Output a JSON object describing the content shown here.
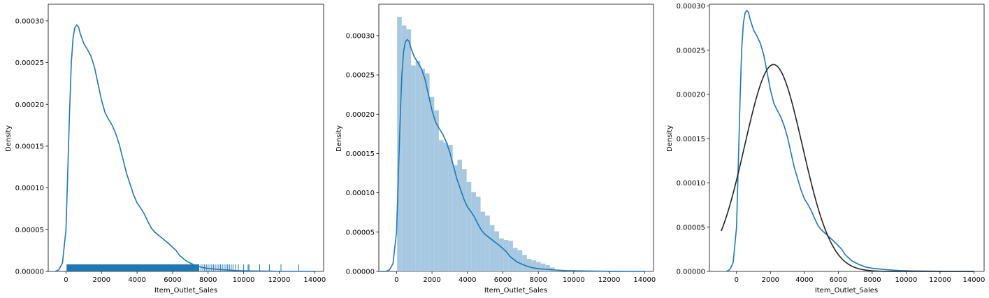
{
  "chart_data": [
    {
      "type": "line",
      "subtype": "kde_with_rug",
      "xlabel": "Item_Outlet_Sales",
      "ylabel": "Density",
      "xlim": [
        -1000,
        14500
      ],
      "ylim": [
        0,
        0.00032
      ],
      "xticks": [
        0,
        2000,
        4000,
        6000,
        8000,
        10000,
        12000,
        14000
      ],
      "yticks": [
        0.0,
        5e-05,
        0.0001,
        0.00015,
        0.0002,
        0.00025,
        0.0003
      ],
      "ytick_labels": [
        "0.00000",
        "0.00005",
        "0.00010",
        "0.00015",
        "0.00020",
        "0.00025",
        "0.00030"
      ],
      "colors": {
        "kde": "#1f77b4",
        "rug": "#1f77b4"
      },
      "series": [
        {
          "values": [
            [
              -600,
              0
            ],
            [
              -400,
              2e-06
            ],
            [
              -200,
              1e-05
            ],
            [
              0,
              5e-05
            ],
            [
              100,
              0.00012
            ],
            [
              200,
              0.00019
            ],
            [
              300,
              0.00025
            ],
            [
              400,
              0.00028
            ],
            [
              500,
              0.000292
            ],
            [
              600,
              0.000295
            ],
            [
              700,
              0.000293
            ],
            [
              800,
              0.000285
            ],
            [
              1000,
              0.000273
            ],
            [
              1200,
              0.000266
            ],
            [
              1400,
              0.000258
            ],
            [
              1600,
              0.000245
            ],
            [
              1800,
              0.000225
            ],
            [
              2000,
              0.000205
            ],
            [
              2200,
              0.00019
            ],
            [
              2400,
              0.000182
            ],
            [
              2600,
              0.000175
            ],
            [
              2800,
              0.000165
            ],
            [
              3000,
              0.000152
            ],
            [
              3200,
              0.000135
            ],
            [
              3400,
              0.000118
            ],
            [
              3600,
              0.000105
            ],
            [
              3800,
              9.2e-05
            ],
            [
              4000,
              8.2e-05
            ],
            [
              4200,
              7.6e-05
            ],
            [
              4400,
              6.9e-05
            ],
            [
              4600,
              6e-05
            ],
            [
              4800,
              5.2e-05
            ],
            [
              5000,
              4.7e-05
            ],
            [
              5400,
              4e-05
            ],
            [
              5800,
              3.3e-05
            ],
            [
              6200,
              2.5e-05
            ],
            [
              6400,
              1.9e-05
            ],
            [
              6800,
              1.2e-05
            ],
            [
              7200,
              8e-06
            ],
            [
              7600,
              5e-06
            ],
            [
              8000,
              3.5e-06
            ],
            [
              8800,
              2e-06
            ],
            [
              9600,
              1e-06
            ],
            [
              10400,
              6e-07
            ],
            [
              12000,
              2e-07
            ],
            [
              14000,
              0
            ]
          ]
        }
      ],
      "rug": {
        "height": 8.5e-06,
        "dense_range": [
          33,
          7500
        ],
        "sparse_points": [
          7600,
          7700,
          7800,
          7900,
          8000,
          8100,
          8200,
          8300,
          8400,
          8500,
          8600,
          8700,
          8800,
          8900,
          9000,
          9100,
          9200,
          9300,
          9400,
          9550,
          9700,
          10000,
          10250,
          10300,
          10900,
          11450,
          12100,
          13100
        ]
      }
    },
    {
      "type": "bar",
      "subtype": "histogram_with_kde",
      "xlabel": "Item_Outlet_Sales",
      "ylabel": "Density",
      "xlim": [
        -1000,
        14500
      ],
      "ylim": [
        0,
        0.00034
      ],
      "xticks": [
        0,
        2000,
        4000,
        6000,
        8000,
        10000,
        12000,
        14000
      ],
      "yticks": [
        0.0,
        5e-05,
        0.0001,
        0.00015,
        0.0002,
        0.00025,
        0.0003
      ],
      "ytick_labels": [
        "0.00000",
        "0.00005",
        "0.00010",
        "0.00015",
        "0.00020",
        "0.00025",
        "0.00030"
      ],
      "colors": {
        "bars": "#a6c8e1",
        "kde": "#1f77b4"
      },
      "bins": {
        "start": 33,
        "width": 261.5
      },
      "values": [
        0.000324,
        0.000313,
        0.000308,
        0.000262,
        0.000268,
        0.000258,
        0.000252,
        0.000222,
        0.000205,
        0.000167,
        0.000164,
        0.000161,
        0.000135,
        0.000142,
        0.00013,
        0.000114,
        0.000101,
        9.5e-05,
        7.6e-05,
        7.1e-05,
        5.9e-05,
        5.1e-05,
        4.2e-05,
        4e-05,
        3.9e-05,
        3e-05,
        2.7e-05,
        2.1e-05,
        1.6e-05,
        1.4e-05,
        1.2e-05,
        1e-05,
        8e-06,
        5e-06
      ],
      "series": [
        {
          "values": [
            [
              -900,
              0
            ],
            [
              -600,
              0
            ],
            [
              -400,
              2e-06
            ],
            [
              -200,
              1e-05
            ],
            [
              0,
              5e-05
            ],
            [
              100,
              0.00012
            ],
            [
              200,
              0.00019
            ],
            [
              300,
              0.00025
            ],
            [
              400,
              0.00028
            ],
            [
              500,
              0.000292
            ],
            [
              600,
              0.000295
            ],
            [
              700,
              0.000293
            ],
            [
              800,
              0.000285
            ],
            [
              1000,
              0.000273
            ],
            [
              1200,
              0.000266
            ],
            [
              1400,
              0.000258
            ],
            [
              1600,
              0.000245
            ],
            [
              1800,
              0.000225
            ],
            [
              2000,
              0.000205
            ],
            [
              2200,
              0.00019
            ],
            [
              2400,
              0.000182
            ],
            [
              2600,
              0.000175
            ],
            [
              2800,
              0.000165
            ],
            [
              3000,
              0.000152
            ],
            [
              3200,
              0.000135
            ],
            [
              3400,
              0.000118
            ],
            [
              3600,
              0.000105
            ],
            [
              3800,
              9.2e-05
            ],
            [
              4000,
              8.2e-05
            ],
            [
              4200,
              7.6e-05
            ],
            [
              4400,
              6.9e-05
            ],
            [
              4600,
              6e-05
            ],
            [
              4800,
              5.2e-05
            ],
            [
              5000,
              4.7e-05
            ],
            [
              5400,
              4e-05
            ],
            [
              5800,
              3.3e-05
            ],
            [
              6200,
              2.5e-05
            ],
            [
              6400,
              1.9e-05
            ],
            [
              6800,
              1.2e-05
            ],
            [
              7200,
              8e-06
            ],
            [
              7600,
              5e-06
            ],
            [
              8000,
              3.5e-06
            ],
            [
              8800,
              2e-06
            ],
            [
              9600,
              1e-06
            ],
            [
              10400,
              6e-07
            ],
            [
              12000,
              2e-07
            ],
            [
              14000,
              0
            ]
          ]
        }
      ]
    },
    {
      "type": "line",
      "subtype": "kde_with_normal_fit",
      "xlabel": "Item_Outlet_Sales",
      "ylabel": "Density",
      "xlim": [
        -1600,
        14600
      ],
      "ylim": [
        0,
        0.000302
      ],
      "xticks": [
        0,
        2000,
        4000,
        6000,
        8000,
        10000,
        12000,
        14000
      ],
      "yticks": [
        0.0,
        5e-05,
        0.0001,
        0.00015,
        0.0002,
        0.00025,
        0.0003
      ],
      "ytick_labels": [
        "0.00000",
        "0.00005",
        "0.00010",
        "0.00015",
        "0.00020",
        "0.00025",
        "0.00030"
      ],
      "colors": {
        "kde": "#1f77b4",
        "fit": "#222222"
      },
      "series": [
        {
          "values": [
            [
              -600,
              0
            ],
            [
              -400,
              2e-06
            ],
            [
              -200,
              1e-05
            ],
            [
              0,
              5e-05
            ],
            [
              100,
              0.00012
            ],
            [
              200,
              0.00019
            ],
            [
              300,
              0.00025
            ],
            [
              400,
              0.00028
            ],
            [
              500,
              0.000292
            ],
            [
              600,
              0.000295
            ],
            [
              700,
              0.000293
            ],
            [
              800,
              0.000285
            ],
            [
              1000,
              0.000273
            ],
            [
              1200,
              0.000266
            ],
            [
              1400,
              0.000258
            ],
            [
              1600,
              0.000245
            ],
            [
              1800,
              0.000225
            ],
            [
              2000,
              0.000205
            ],
            [
              2200,
              0.00019
            ],
            [
              2400,
              0.000182
            ],
            [
              2600,
              0.000175
            ],
            [
              2800,
              0.000165
            ],
            [
              3000,
              0.000152
            ],
            [
              3200,
              0.000135
            ],
            [
              3400,
              0.000118
            ],
            [
              3600,
              0.000105
            ],
            [
              3800,
              9.2e-05
            ],
            [
              4000,
              8.2e-05
            ],
            [
              4200,
              7.6e-05
            ],
            [
              4400,
              6.9e-05
            ],
            [
              4600,
              6e-05
            ],
            [
              4800,
              5.2e-05
            ],
            [
              5000,
              4.7e-05
            ],
            [
              5400,
              4e-05
            ],
            [
              5800,
              3.3e-05
            ],
            [
              6200,
              2.5e-05
            ],
            [
              6400,
              1.9e-05
            ],
            [
              6800,
              1.2e-05
            ],
            [
              7200,
              8e-06
            ],
            [
              7600,
              5e-06
            ],
            [
              8000,
              3.5e-06
            ],
            [
              8800,
              2e-06
            ],
            [
              9600,
              1e-06
            ],
            [
              10400,
              6e-07
            ],
            [
              12000,
              2e-07
            ],
            [
              14000,
              0
            ]
          ]
        }
      ],
      "normal_fit": {
        "mean": 2181,
        "std": 1706,
        "x_range": [
          -900,
          14000
        ]
      }
    }
  ]
}
